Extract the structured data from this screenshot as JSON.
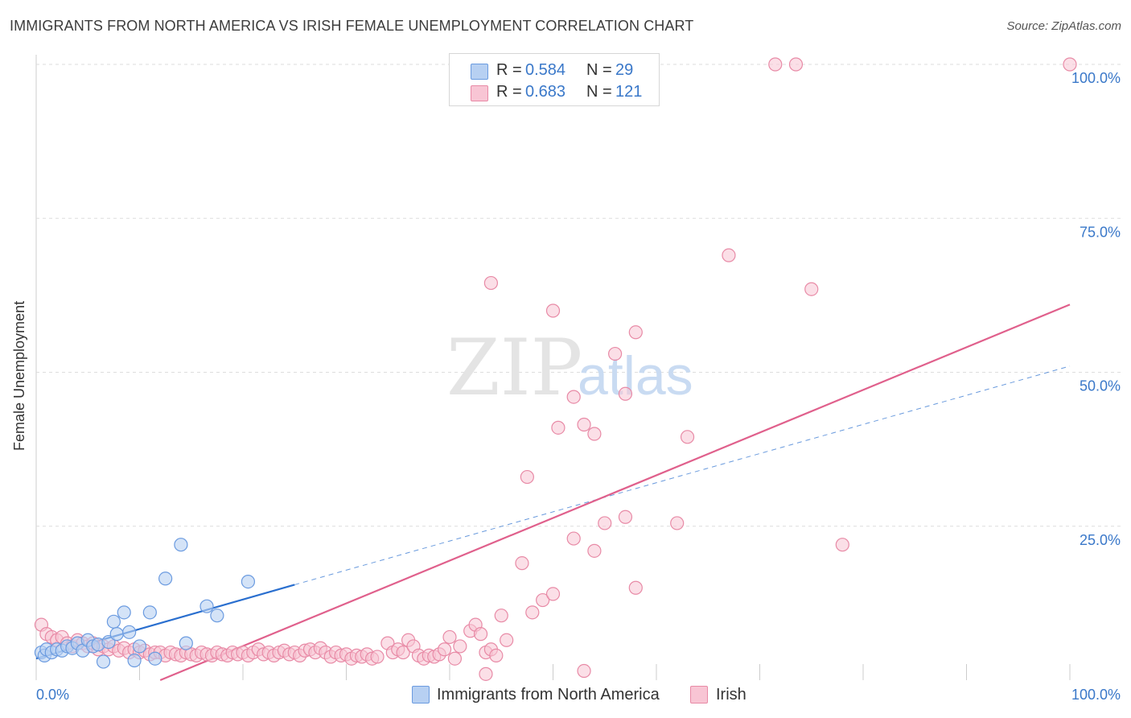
{
  "header": {
    "title": "IMMIGRANTS FROM NORTH AMERICA VS IRISH FEMALE UNEMPLOYMENT CORRELATION CHART",
    "source": "Source: ZipAtlas.com"
  },
  "watermark": {
    "zip": "ZIP",
    "atlas": "atlas"
  },
  "legend": {
    "r_label": "R =",
    "n_label": "N =",
    "rows": [
      {
        "name": "Immigrants from North America",
        "r": "0.584",
        "n": "29",
        "color": "#aec9f0"
      },
      {
        "name": "Irish",
        "r": "0.683",
        "n": "121",
        "color": "#f7b8cb"
      }
    ]
  },
  "colors": {
    "blue_fill": "#b7d0f2",
    "blue_stroke": "#6b9be0",
    "blue_line": "#2a6fcf",
    "pink_fill": "#f8c5d4",
    "pink_stroke": "#e88aa6",
    "pink_line": "#e0608c",
    "axis_text": "#3a78c9",
    "grid": "#dddddd"
  },
  "chart_data": {
    "type": "scatter",
    "title": "IMMIGRANTS FROM NORTH AMERICA VS IRISH FEMALE UNEMPLOYMENT CORRELATION CHART",
    "xlabel": "",
    "ylabel": "Female Unemployment",
    "xlim": [
      0,
      100
    ],
    "ylim": [
      0,
      100
    ],
    "x_tick_labels": [
      "0.0%",
      "100.0%"
    ],
    "y_ticks": [
      25,
      50,
      75,
      100
    ],
    "y_tick_labels": [
      "25.0%",
      "50.0%",
      "75.0%",
      "100.0%"
    ],
    "grid": true,
    "series": [
      {
        "name": "Immigrants from North America",
        "r": 0.584,
        "n": 29,
        "trend": {
          "x0": 0,
          "y0": 3.5,
          "x1": 25,
          "y1": 15.5,
          "dashed_to_x": 100,
          "dashed_to_y": 51
        },
        "points": [
          [
            0.5,
            4.5
          ],
          [
            0.8,
            4.0
          ],
          [
            1.0,
            5.0
          ],
          [
            1.5,
            4.5
          ],
          [
            2.0,
            5.0
          ],
          [
            2.5,
            4.8
          ],
          [
            3.0,
            5.5
          ],
          [
            3.5,
            5.2
          ],
          [
            4.0,
            6.0
          ],
          [
            4.5,
            4.8
          ],
          [
            5.0,
            6.5
          ],
          [
            5.5,
            5.5
          ],
          [
            6.0,
            5.8
          ],
          [
            6.5,
            3.0
          ],
          [
            7.0,
            6.2
          ],
          [
            7.5,
            9.5
          ],
          [
            7.8,
            7.5
          ],
          [
            8.5,
            11.0
          ],
          [
            9.0,
            7.8
          ],
          [
            9.5,
            3.2
          ],
          [
            10.0,
            5.5
          ],
          [
            11.0,
            11.0
          ],
          [
            11.5,
            3.5
          ],
          [
            12.5,
            16.5
          ],
          [
            14.0,
            22.0
          ],
          [
            14.5,
            6.0
          ],
          [
            16.5,
            12.0
          ],
          [
            17.5,
            10.5
          ],
          [
            20.5,
            16.0
          ]
        ]
      },
      {
        "name": "Irish",
        "r": 0.683,
        "n": 121,
        "trend": {
          "x0": 12,
          "y0": 0,
          "x1": 100,
          "y1": 61
        },
        "points": [
          [
            0.5,
            9.0
          ],
          [
            1.0,
            7.5
          ],
          [
            1.5,
            7.0
          ],
          [
            2.0,
            6.5
          ],
          [
            2.5,
            7.0
          ],
          [
            3.0,
            6.0
          ],
          [
            3.5,
            5.5
          ],
          [
            4.0,
            6.5
          ],
          [
            4.5,
            6.0
          ],
          [
            5.0,
            5.5
          ],
          [
            5.5,
            6.0
          ],
          [
            6.0,
            5.0
          ],
          [
            6.5,
            5.5
          ],
          [
            7.0,
            5.0
          ],
          [
            7.5,
            5.5
          ],
          [
            8.0,
            4.8
          ],
          [
            8.5,
            5.2
          ],
          [
            9.0,
            4.5
          ],
          [
            9.5,
            5.0
          ],
          [
            10.0,
            4.5
          ],
          [
            10.5,
            4.8
          ],
          [
            11.0,
            4.2
          ],
          [
            11.5,
            4.5
          ],
          [
            12.0,
            4.5
          ],
          [
            12.5,
            4.0
          ],
          [
            13.0,
            4.5
          ],
          [
            13.5,
            4.2
          ],
          [
            14.0,
            4.0
          ],
          [
            14.5,
            4.5
          ],
          [
            15.0,
            4.2
          ],
          [
            15.5,
            4.0
          ],
          [
            16.0,
            4.5
          ],
          [
            16.5,
            4.2
          ],
          [
            17.0,
            4.0
          ],
          [
            17.5,
            4.5
          ],
          [
            18.0,
            4.2
          ],
          [
            18.5,
            4.0
          ],
          [
            19.0,
            4.5
          ],
          [
            19.5,
            4.2
          ],
          [
            20.0,
            4.5
          ],
          [
            20.5,
            4.0
          ],
          [
            21.0,
            4.5
          ],
          [
            21.5,
            5.0
          ],
          [
            22.0,
            4.2
          ],
          [
            22.5,
            4.5
          ],
          [
            23.0,
            4.0
          ],
          [
            23.5,
            4.5
          ],
          [
            24.0,
            4.8
          ],
          [
            24.5,
            4.2
          ],
          [
            25.0,
            4.5
          ],
          [
            25.5,
            4.0
          ],
          [
            26.0,
            4.8
          ],
          [
            26.5,
            5.0
          ],
          [
            27.0,
            4.5
          ],
          [
            27.5,
            5.2
          ],
          [
            28.0,
            4.5
          ],
          [
            28.5,
            3.8
          ],
          [
            29.0,
            4.5
          ],
          [
            29.5,
            4.0
          ],
          [
            30.0,
            4.2
          ],
          [
            30.5,
            3.5
          ],
          [
            31.0,
            4.0
          ],
          [
            31.5,
            3.8
          ],
          [
            32.0,
            4.2
          ],
          [
            32.5,
            3.5
          ],
          [
            33.0,
            3.8
          ],
          [
            34.0,
            6.0
          ],
          [
            34.5,
            4.5
          ],
          [
            35.0,
            5.0
          ],
          [
            35.5,
            4.5
          ],
          [
            36.0,
            6.5
          ],
          [
            36.5,
            5.5
          ],
          [
            37.0,
            4.0
          ],
          [
            37.5,
            3.5
          ],
          [
            38.0,
            4.0
          ],
          [
            38.5,
            3.8
          ],
          [
            39.0,
            4.2
          ],
          [
            39.5,
            5.0
          ],
          [
            40.0,
            7.0
          ],
          [
            40.5,
            3.5
          ],
          [
            41.0,
            5.5
          ],
          [
            42.0,
            8.0
          ],
          [
            42.5,
            9.0
          ],
          [
            43.0,
            7.5
          ],
          [
            43.5,
            4.5
          ],
          [
            44.0,
            5.0
          ],
          [
            44.5,
            4.0
          ],
          [
            45.0,
            10.5
          ],
          [
            45.5,
            6.5
          ],
          [
            47.0,
            19.0
          ],
          [
            48.0,
            11.0
          ],
          [
            49.0,
            13.0
          ],
          [
            50.0,
            14.0
          ],
          [
            52.0,
            23.0
          ],
          [
            53.0,
            1.5
          ],
          [
            54.0,
            21.0
          ],
          [
            55.0,
            25.5
          ],
          [
            57.0,
            26.5
          ],
          [
            58.0,
            15.0
          ],
          [
            62.0,
            25.5
          ],
          [
            78.0,
            22.0
          ],
          [
            43.5,
            1.0
          ],
          [
            47.5,
            33.0
          ],
          [
            50.5,
            41.0
          ],
          [
            52.0,
            46.0
          ],
          [
            53.0,
            41.5
          ],
          [
            54.0,
            40.0
          ],
          [
            56.0,
            53.0
          ],
          [
            57.0,
            46.5
          ],
          [
            58.0,
            56.5
          ],
          [
            63.0,
            39.5
          ],
          [
            44.0,
            64.5
          ],
          [
            50.0,
            60.0
          ],
          [
            67.0,
            69.0
          ],
          [
            75.0,
            63.5
          ],
          [
            71.5,
            100
          ],
          [
            73.5,
            100
          ],
          [
            100,
            100
          ]
        ]
      }
    ]
  },
  "bottom_legend": {
    "blue": "Immigrants from North America",
    "pink": "Irish"
  }
}
